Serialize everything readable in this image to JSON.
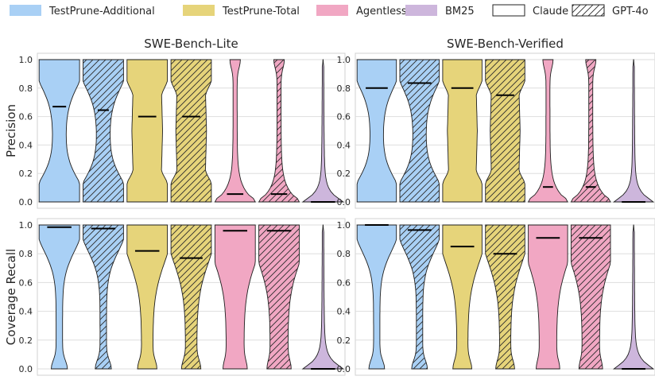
{
  "legend": {
    "items": [
      {
        "label": "TestPrune-Additional",
        "color": "#a9d0f5",
        "hatch": false
      },
      {
        "label": "TestPrune-Total",
        "color": "#e6d47a",
        "hatch": false
      },
      {
        "label": "Agentless",
        "color": "#f1a7c3",
        "hatch": false
      },
      {
        "label": "BM25",
        "color": "#cdb6dc",
        "hatch": false
      },
      {
        "label": "Claude",
        "color": "#ffffff",
        "hatch": false
      },
      {
        "label": "GPT-4o",
        "color": "#ffffff",
        "hatch": true
      }
    ]
  },
  "chart_data": {
    "type": "violin",
    "columns": [
      "SWE-Bench-Lite",
      "SWE-Bench-Verified"
    ],
    "rows": [
      "Precision",
      "Coverage Recall"
    ],
    "ylim": [
      0,
      1
    ],
    "yticks": [
      "0.0",
      "0.2",
      "0.4",
      "0.6",
      "0.8",
      "1.0"
    ],
    "grid": true,
    "legend_position": "top",
    "series_order": [
      {
        "method": "TestPrune-Additional",
        "model": "Claude"
      },
      {
        "method": "TestPrune-Additional",
        "model": "GPT-4o"
      },
      {
        "method": "TestPrune-Total",
        "model": "Claude"
      },
      {
        "method": "TestPrune-Total",
        "model": "GPT-4o"
      },
      {
        "method": "Agentless",
        "model": "Claude"
      },
      {
        "method": "Agentless",
        "model": "GPT-4o"
      },
      {
        "method": "BM25",
        "model": null
      }
    ],
    "panels": [
      {
        "row": "Precision",
        "col": "SWE-Bench-Lite",
        "medians": [
          0.67,
          0.645,
          0.6,
          0.6,
          0.055,
          0.055,
          0.0
        ]
      },
      {
        "row": "Precision",
        "col": "SWE-Bench-Verified",
        "medians": [
          0.8,
          0.835,
          0.8,
          0.75,
          0.105,
          0.105,
          0.0
        ]
      },
      {
        "row": "Coverage Recall",
        "col": "SWE-Bench-Lite",
        "medians": [
          0.985,
          0.975,
          0.82,
          0.77,
          0.96,
          0.96,
          0.0
        ]
      },
      {
        "row": "Coverage Recall",
        "col": "SWE-Bench-Verified",
        "medians": [
          1.0,
          0.965,
          0.85,
          0.8,
          0.91,
          0.91,
          0.0
        ]
      }
    ]
  }
}
